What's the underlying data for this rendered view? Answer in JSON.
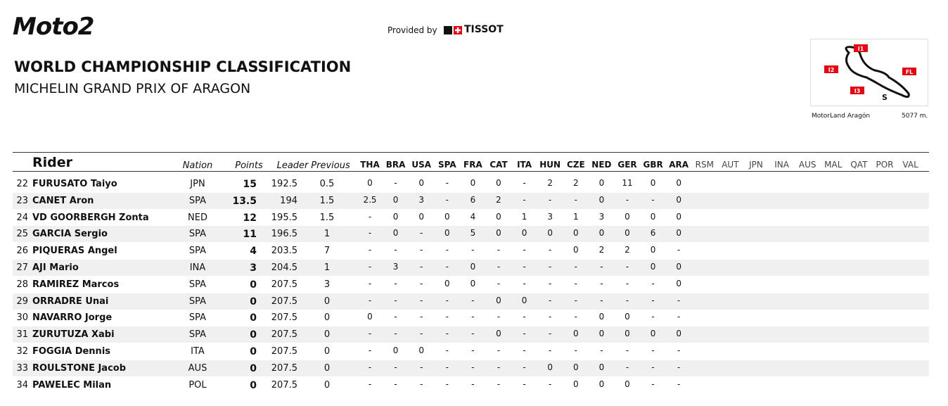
{
  "header": {
    "logo": "Moto2",
    "provided_by": "Provided by",
    "sponsor": "TISSOT",
    "title": "WORLD CHAMPIONSHIP CLASSIFICATION",
    "subtitle": "MICHELIN GRAND PRIX OF ARAGON"
  },
  "track": {
    "name": "MotorLand Aragón",
    "length": "5077 m.",
    "labels": [
      "I1",
      "I2",
      "I3",
      "FL",
      "S"
    ]
  },
  "table": {
    "columns": [
      "Rider",
      "Nation",
      "Points",
      "Leader",
      "Previous"
    ],
    "races": [
      "THA",
      "BRA",
      "USA",
      "SPA",
      "FRA",
      "CAT",
      "ITA",
      "HUN",
      "CZE",
      "NED",
      "GER",
      "GBR",
      "ARA",
      "RSM",
      "AUT",
      "JPN",
      "INA",
      "AUS",
      "MAL",
      "QAT",
      "POR",
      "VAL"
    ],
    "rows": [
      {
        "pos": "22",
        "rider": "FURUSATO Taiyo",
        "nation": "JPN",
        "points": "15",
        "leader": "192.5",
        "previous": "0.5",
        "results": [
          "0",
          "-",
          "0",
          "-",
          "0",
          "0",
          "-",
          "2",
          "2",
          "0",
          "11",
          "0",
          "0"
        ]
      },
      {
        "pos": "23",
        "rider": "CANET Aron",
        "nation": "SPA",
        "points": "13.5",
        "leader": "194",
        "previous": "1.5",
        "results": [
          "2.5",
          "0",
          "3",
          "-",
          "6",
          "2",
          "-",
          "-",
          "-",
          "0",
          "-",
          "-",
          "0"
        ]
      },
      {
        "pos": "24",
        "rider": "VD GOORBERGH Zonta",
        "nation": "NED",
        "points": "12",
        "leader": "195.5",
        "previous": "1.5",
        "results": [
          "-",
          "0",
          "0",
          "0",
          "4",
          "0",
          "1",
          "3",
          "1",
          "3",
          "0",
          "0",
          "0"
        ]
      },
      {
        "pos": "25",
        "rider": "GARCIA Sergio",
        "nation": "SPA",
        "points": "11",
        "leader": "196.5",
        "previous": "1",
        "results": [
          "-",
          "0",
          "-",
          "0",
          "5",
          "0",
          "0",
          "0",
          "0",
          "0",
          "0",
          "6",
          "0"
        ]
      },
      {
        "pos": "26",
        "rider": "PIQUERAS Angel",
        "nation": "SPA",
        "points": "4",
        "leader": "203.5",
        "previous": "7",
        "results": [
          "-",
          "-",
          "-",
          "-",
          "-",
          "-",
          "-",
          "-",
          "0",
          "2",
          "2",
          "0",
          "-"
        ]
      },
      {
        "pos": "27",
        "rider": "AJI Mario",
        "nation": "INA",
        "points": "3",
        "leader": "204.5",
        "previous": "1",
        "results": [
          "-",
          "3",
          "-",
          "-",
          "0",
          "-",
          "-",
          "-",
          "-",
          "-",
          "-",
          "0",
          "0"
        ]
      },
      {
        "pos": "28",
        "rider": "RAMIREZ Marcos",
        "nation": "SPA",
        "points": "0",
        "leader": "207.5",
        "previous": "3",
        "results": [
          "-",
          "-",
          "-",
          "0",
          "0",
          "-",
          "-",
          "-",
          "-",
          "-",
          "-",
          "-",
          "0"
        ]
      },
      {
        "pos": "29",
        "rider": "ORRADRE Unai",
        "nation": "SPA",
        "points": "0",
        "leader": "207.5",
        "previous": "0",
        "results": [
          "-",
          "-",
          "-",
          "-",
          "-",
          "0",
          "0",
          "-",
          "-",
          "-",
          "-",
          "-",
          "-"
        ]
      },
      {
        "pos": "30",
        "rider": "NAVARRO Jorge",
        "nation": "SPA",
        "points": "0",
        "leader": "207.5",
        "previous": "0",
        "results": [
          "0",
          "-",
          "-",
          "-",
          "-",
          "-",
          "-",
          "-",
          "-",
          "0",
          "0",
          "-",
          "-"
        ]
      },
      {
        "pos": "31",
        "rider": "ZURUTUZA Xabi",
        "nation": "SPA",
        "points": "0",
        "leader": "207.5",
        "previous": "0",
        "results": [
          "-",
          "-",
          "-",
          "-",
          "-",
          "0",
          "-",
          "-",
          "0",
          "0",
          "0",
          "0",
          "0"
        ]
      },
      {
        "pos": "32",
        "rider": "FOGGIA Dennis",
        "nation": "ITA",
        "points": "0",
        "leader": "207.5",
        "previous": "0",
        "results": [
          "-",
          "0",
          "0",
          "-",
          "-",
          "-",
          "-",
          "-",
          "-",
          "-",
          "-",
          "-",
          "-"
        ]
      },
      {
        "pos": "33",
        "rider": "ROULSTONE Jacob",
        "nation": "AUS",
        "points": "0",
        "leader": "207.5",
        "previous": "0",
        "results": [
          "-",
          "-",
          "-",
          "-",
          "-",
          "-",
          "-",
          "0",
          "0",
          "0",
          "-",
          "-",
          "-"
        ]
      },
      {
        "pos": "34",
        "rider": "PAWELEC Milan",
        "nation": "POL",
        "points": "0",
        "leader": "207.5",
        "previous": "0",
        "results": [
          "-",
          "-",
          "-",
          "-",
          "-",
          "-",
          "-",
          "-",
          "0",
          "0",
          "0",
          "-",
          "-"
        ]
      }
    ]
  }
}
